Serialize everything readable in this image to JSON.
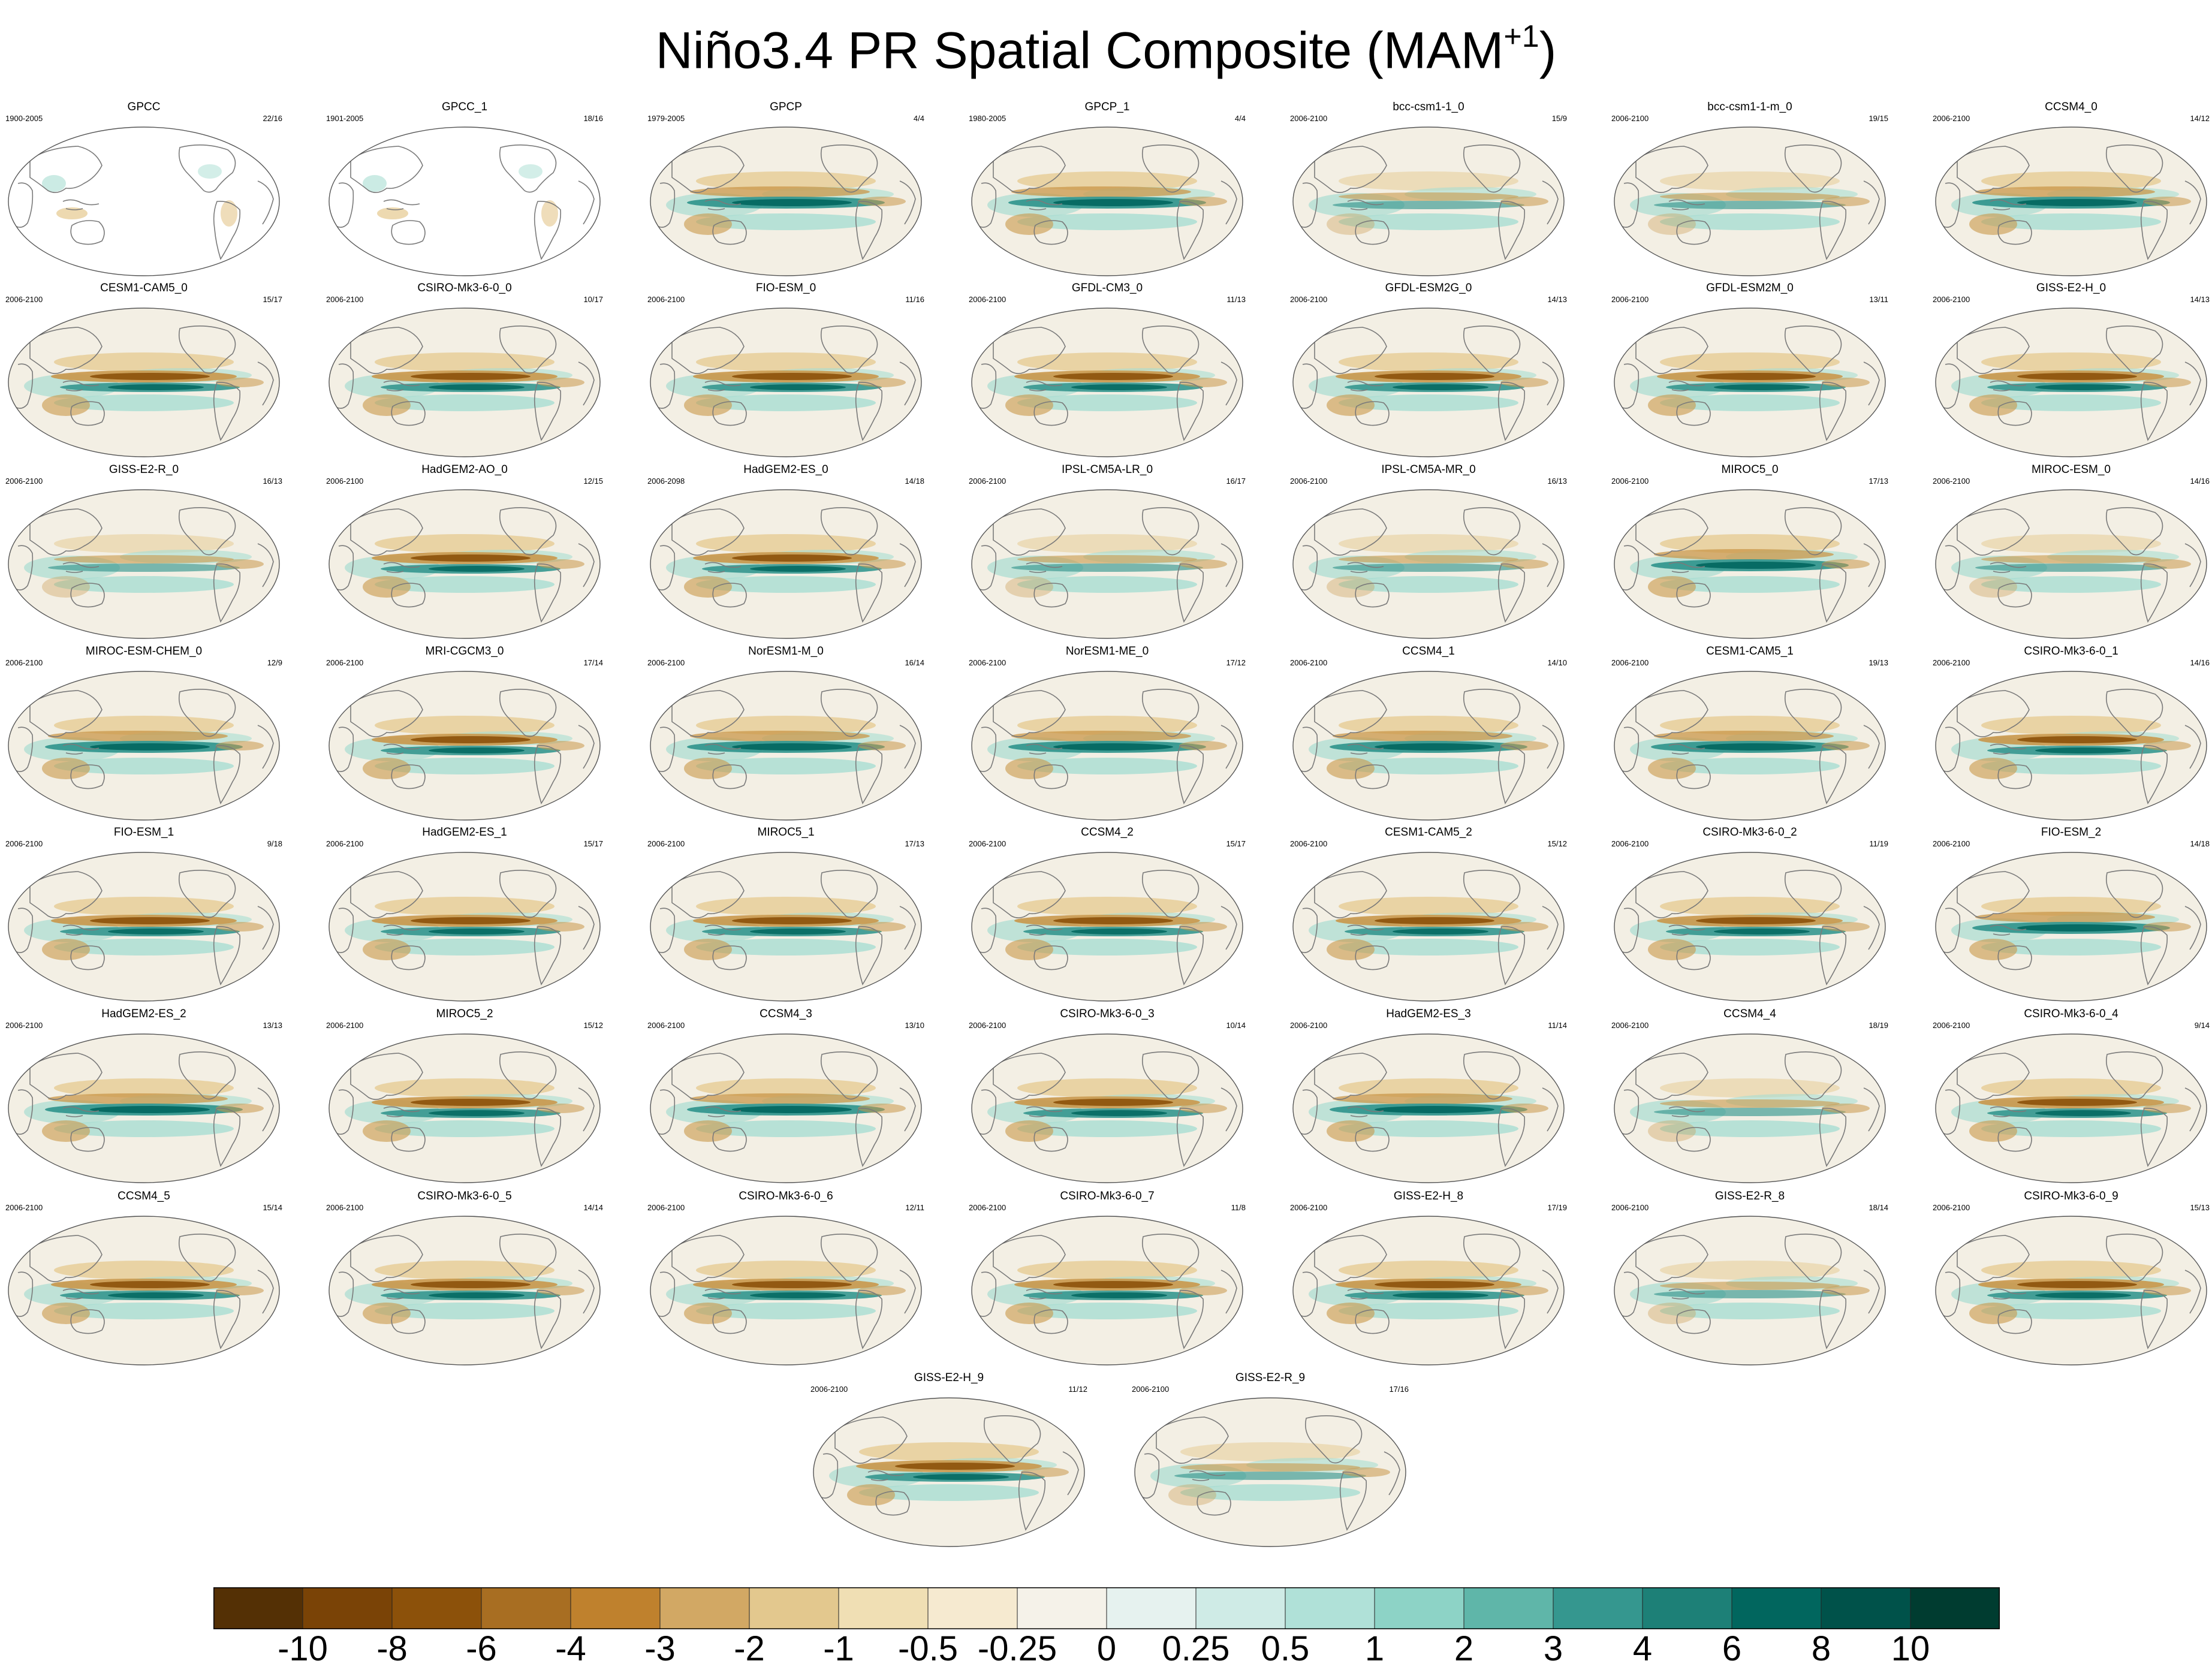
{
  "title": "Niño3.4 PR Spatial Composite (MAM",
  "title_sup": "+1",
  "title_close": ")",
  "panels": [
    {
      "title": "GPCC",
      "period": "1900-2005",
      "count": "22/16",
      "style": "land"
    },
    {
      "title": "GPCC_1",
      "period": "1901-2005",
      "count": "18/16",
      "style": "land"
    },
    {
      "title": "GPCP",
      "period": "1979-2005",
      "count": "4/4",
      "style": "wet"
    },
    {
      "title": "GPCP_1",
      "period": "1980-2005",
      "count": "4/4",
      "style": "wet"
    },
    {
      "title": "bcc-csm1-1_0",
      "period": "2006-2100",
      "count": "15/9",
      "style": "weak"
    },
    {
      "title": "bcc-csm1-1-m_0",
      "period": "2006-2100",
      "count": "19/15",
      "style": "weak"
    },
    {
      "title": "CCSM4_0",
      "period": "2006-2100",
      "count": "14/12",
      "style": "wet"
    },
    {
      "title": "CESM1-CAM5_0",
      "period": "2006-2100",
      "count": "15/17",
      "style": "dry"
    },
    {
      "title": "CSIRO-Mk3-6-0_0",
      "period": "2006-2100",
      "count": "10/17",
      "style": "dry"
    },
    {
      "title": "FIO-ESM_0",
      "period": "2006-2100",
      "count": "11/16",
      "style": "dry"
    },
    {
      "title": "GFDL-CM3_0",
      "period": "2006-2100",
      "count": "11/13",
      "style": "dry"
    },
    {
      "title": "GFDL-ESM2G_0",
      "period": "2006-2100",
      "count": "14/13",
      "style": "dry"
    },
    {
      "title": "GFDL-ESM2M_0",
      "period": "2006-2100",
      "count": "13/11",
      "style": "dry"
    },
    {
      "title": "GISS-E2-H_0",
      "period": "2006-2100",
      "count": "14/13",
      "style": "dry"
    },
    {
      "title": "GISS-E2-R_0",
      "period": "2006-2100",
      "count": "16/13",
      "style": "weak"
    },
    {
      "title": "HadGEM2-AO_0",
      "period": "2006-2100",
      "count": "12/15",
      "style": "dry"
    },
    {
      "title": "HadGEM2-ES_0",
      "period": "2006-2098",
      "count": "14/18",
      "style": "dry"
    },
    {
      "title": "IPSL-CM5A-LR_0",
      "period": "2006-2100",
      "count": "16/17",
      "style": "weak"
    },
    {
      "title": "IPSL-CM5A-MR_0",
      "period": "2006-2100",
      "count": "16/13",
      "style": "weak"
    },
    {
      "title": "MIROC5_0",
      "period": "2006-2100",
      "count": "17/13",
      "style": "wet"
    },
    {
      "title": "MIROC-ESM_0",
      "period": "2006-2100",
      "count": "14/16",
      "style": "weak"
    },
    {
      "title": "MIROC-ESM-CHEM_0",
      "period": "2006-2100",
      "count": "12/9",
      "style": "wet"
    },
    {
      "title": "MRI-CGCM3_0",
      "period": "2006-2100",
      "count": "17/14",
      "style": "dry"
    },
    {
      "title": "NorESM1-M_0",
      "period": "2006-2100",
      "count": "16/14",
      "style": "wet"
    },
    {
      "title": "NorESM1-ME_0",
      "period": "2006-2100",
      "count": "17/12",
      "style": "wet"
    },
    {
      "title": "CCSM4_1",
      "period": "2006-2100",
      "count": "14/10",
      "style": "wet"
    },
    {
      "title": "CESM1-CAM5_1",
      "period": "2006-2100",
      "count": "19/13",
      "style": "wet"
    },
    {
      "title": "CSIRO-Mk3-6-0_1",
      "period": "2006-2100",
      "count": "14/16",
      "style": "dry"
    },
    {
      "title": "FIO-ESM_1",
      "period": "2006-2100",
      "count": "9/18",
      "style": "dry"
    },
    {
      "title": "HadGEM2-ES_1",
      "period": "2006-2100",
      "count": "15/17",
      "style": "dry"
    },
    {
      "title": "MIROC5_1",
      "period": "2006-2100",
      "count": "17/13",
      "style": "dry"
    },
    {
      "title": "CCSM4_2",
      "period": "2006-2100",
      "count": "15/17",
      "style": "dry"
    },
    {
      "title": "CESM1-CAM5_2",
      "period": "2006-2100",
      "count": "15/12",
      "style": "dry"
    },
    {
      "title": "CSIRO-Mk3-6-0_2",
      "period": "2006-2100",
      "count": "11/19",
      "style": "dry"
    },
    {
      "title": "FIO-ESM_2",
      "period": "2006-2100",
      "count": "14/18",
      "style": "wet"
    },
    {
      "title": "HadGEM2-ES_2",
      "period": "2006-2100",
      "count": "13/13",
      "style": "wet"
    },
    {
      "title": "MIROC5_2",
      "period": "2006-2100",
      "count": "15/12",
      "style": "dry"
    },
    {
      "title": "CCSM4_3",
      "period": "2006-2100",
      "count": "13/10",
      "style": "wet"
    },
    {
      "title": "CSIRO-Mk3-6-0_3",
      "period": "2006-2100",
      "count": "10/14",
      "style": "dry"
    },
    {
      "title": "HadGEM2-ES_3",
      "period": "2006-2100",
      "count": "11/14",
      "style": "wet"
    },
    {
      "title": "CCSM4_4",
      "period": "2006-2100",
      "count": "18/19",
      "style": "weak"
    },
    {
      "title": "CSIRO-Mk3-6-0_4",
      "period": "2006-2100",
      "count": "9/14",
      "style": "dry"
    },
    {
      "title": "CCSM4_5",
      "period": "2006-2100",
      "count": "15/14",
      "style": "dry"
    },
    {
      "title": "CSIRO-Mk3-6-0_5",
      "period": "2006-2100",
      "count": "14/14",
      "style": "dry"
    },
    {
      "title": "CSIRO-Mk3-6-0_6",
      "period": "2006-2100",
      "count": "12/11",
      "style": "dry"
    },
    {
      "title": "CSIRO-Mk3-6-0_7",
      "period": "2006-2100",
      "count": "11/8",
      "style": "dry"
    },
    {
      "title": "GISS-E2-H_8",
      "period": "2006-2100",
      "count": "17/19",
      "style": "dry"
    },
    {
      "title": "GISS-E2-R_8",
      "period": "2006-2100",
      "count": "18/14",
      "style": "weak"
    },
    {
      "title": "CSIRO-Mk3-6-0_9",
      "period": "2006-2100",
      "count": "15/13",
      "style": "dry"
    },
    {
      "title": "GISS-E2-H_9",
      "period": "2006-2100",
      "count": "11/12",
      "style": "dry"
    },
    {
      "title": "GISS-E2-R_9",
      "period": "2006-2100",
      "count": "17/16",
      "style": "weak"
    }
  ],
  "colorbar": {
    "colors": [
      "#543005",
      "#7a4306",
      "#8c510a",
      "#a86e22",
      "#bf812d",
      "#d2a864",
      "#e3c88e",
      "#f0dfb4",
      "#f6ead0",
      "#f5f2e9",
      "#e6f2ef",
      "#cfebe6",
      "#b0e1d8",
      "#8dd3c6",
      "#5fb6a9",
      "#35978f",
      "#1d8077",
      "#01665e",
      "#00524a",
      "#003c30"
    ],
    "labels": [
      "-10",
      "-8",
      "-6",
      "-4",
      "-3",
      "-2",
      "-1",
      "-0.5",
      "-0.25",
      "0",
      "0.25",
      "0.5",
      "1",
      "2",
      "3",
      "4",
      "6",
      "8",
      "10"
    ]
  },
  "palette": {
    "ocean_bg": "#f3efe4",
    "coast": "#7a7a7a",
    "dry_strong": "#8c510a",
    "dry": "#c9974a",
    "dry_light": "#e8cf9c",
    "wet_strong": "#01665e",
    "wet": "#35978f",
    "wet_light": "#a8ddd2"
  }
}
